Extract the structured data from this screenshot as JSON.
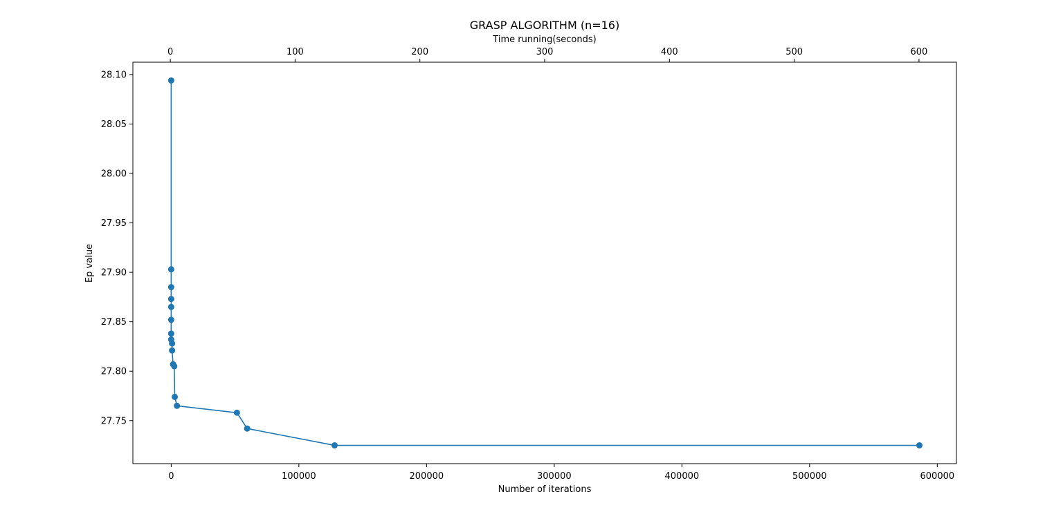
{
  "chart_data": {
    "type": "line",
    "title": "GRASP ALGORITHM (n=16)",
    "xlabel": "Number of iterations",
    "ylabel": "Ep value",
    "secondary_xlabel": "Time running(seconds)",
    "xlim": [
      -30000,
      615000
    ],
    "ylim": [
      27.7065,
      28.1125
    ],
    "secondary_xlim": [
      -30,
      630
    ],
    "x_ticks": [
      0,
      100000,
      200000,
      300000,
      400000,
      500000,
      600000
    ],
    "x_tick_labels": [
      "0",
      "100000",
      "200000",
      "300000",
      "400000",
      "500000",
      "600000"
    ],
    "y_ticks": [
      27.75,
      27.8,
      27.85,
      27.9,
      27.95,
      28.0,
      28.05,
      28.1
    ],
    "y_tick_labels": [
      "27.75",
      "27.80",
      "27.85",
      "27.90",
      "27.95",
      "28.00",
      "28.05",
      "28.10"
    ],
    "secondary_x_ticks": [
      0,
      100,
      200,
      300,
      400,
      500,
      600
    ],
    "secondary_x_tick_labels": [
      "0",
      "100",
      "200",
      "300",
      "400",
      "500",
      "600"
    ],
    "grid": false,
    "legend": "none",
    "series": [
      {
        "color": "#1f77b4",
        "marker": "circle",
        "points": [
          {
            "x": 0,
            "y": 28.094
          },
          {
            "x": 0,
            "y": 27.903
          },
          {
            "x": 0,
            "y": 27.885
          },
          {
            "x": 0,
            "y": 27.873
          },
          {
            "x": 0,
            "y": 27.865
          },
          {
            "x": 0,
            "y": 27.852
          },
          {
            "x": 0,
            "y": 27.838
          },
          {
            "x": 0,
            "y": 27.832
          },
          {
            "x": 700,
            "y": 27.828
          },
          {
            "x": 700,
            "y": 27.821
          },
          {
            "x": 1500,
            "y": 27.807
          },
          {
            "x": 2400,
            "y": 27.805
          },
          {
            "x": 2800,
            "y": 27.774
          },
          {
            "x": 4500,
            "y": 27.765
          },
          {
            "x": 51500,
            "y": 27.758
          },
          {
            "x": 59500,
            "y": 27.742
          },
          {
            "x": 128000,
            "y": 27.725
          },
          {
            "x": 586000,
            "y": 27.725
          }
        ]
      }
    ]
  }
}
